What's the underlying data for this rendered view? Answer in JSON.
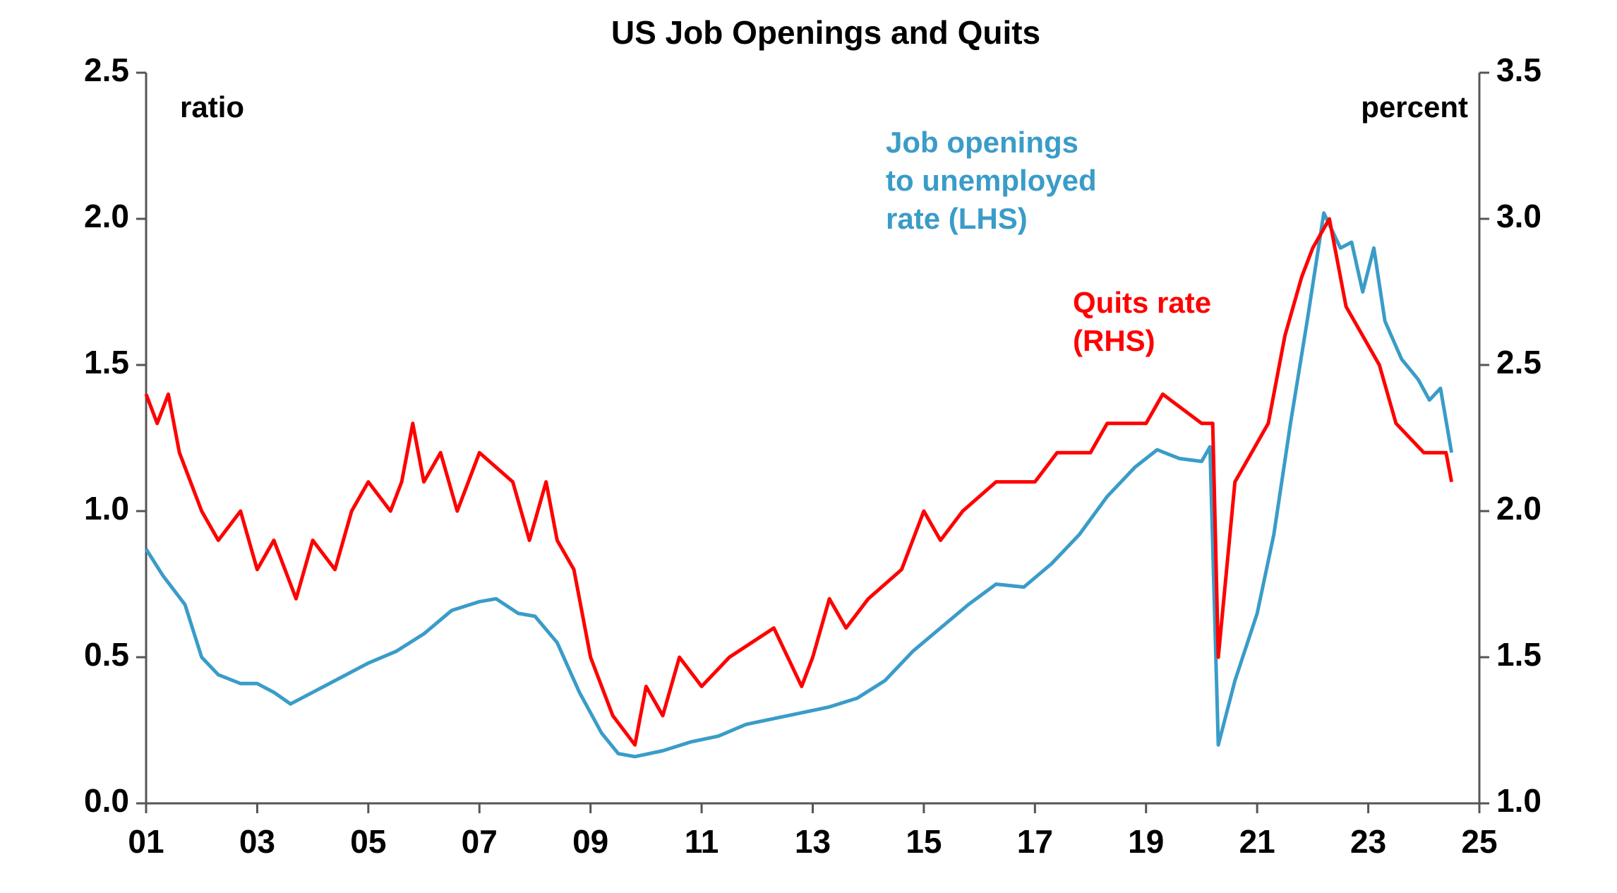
{
  "chart_data": {
    "type": "line",
    "title": "US Job Openings and Quits",
    "y_unit_label": "ratio",
    "y2_unit_label": "percent",
    "xlim": [
      2001,
      2025
    ],
    "xticks": [
      {
        "value": 2001,
        "label": "01"
      },
      {
        "value": 2003,
        "label": "03"
      },
      {
        "value": 2005,
        "label": "05"
      },
      {
        "value": 2007,
        "label": "07"
      },
      {
        "value": 2009,
        "label": "09"
      },
      {
        "value": 2011,
        "label": "11"
      },
      {
        "value": 2013,
        "label": "13"
      },
      {
        "value": 2015,
        "label": "15"
      },
      {
        "value": 2017,
        "label": "17"
      },
      {
        "value": 2019,
        "label": "19"
      },
      {
        "value": 2021,
        "label": "21"
      },
      {
        "value": 2023,
        "label": "23"
      },
      {
        "value": 2025,
        "label": "25"
      }
    ],
    "ylim": [
      0,
      2.5
    ],
    "yticks": [
      {
        "value": 0,
        "label": "0.0"
      },
      0.5,
      {
        "value": 1,
        "label": "1.0"
      },
      1.5,
      {
        "value": 2,
        "label": "2.0"
      },
      2.5
    ],
    "y2lim": [
      1,
      3.5
    ],
    "y2ticks": [
      {
        "value": 1,
        "label": "1.0"
      },
      1.5,
      {
        "value": 2,
        "label": "2.0"
      },
      2.5,
      {
        "value": 3,
        "label": "3.0"
      },
      3.5
    ],
    "series": [
      {
        "label_lines": [
          "Job openings",
          "to unemployed",
          "rate (LHS)"
        ],
        "color": "#3a9cc8",
        "axis": "y",
        "x": [
          2001.0,
          2001.3,
          2001.7,
          2002.0,
          2002.3,
          2002.7,
          2003.0,
          2003.3,
          2003.6,
          2004.0,
          2004.5,
          2005.0,
          2005.5,
          2006.0,
          2006.5,
          2007.0,
          2007.3,
          2007.7,
          2008.0,
          2008.4,
          2008.8,
          2009.2,
          2009.5,
          2009.8,
          2010.3,
          2010.8,
          2011.3,
          2011.8,
          2012.3,
          2012.8,
          2013.3,
          2013.8,
          2014.3,
          2014.8,
          2015.3,
          2015.8,
          2016.3,
          2016.8,
          2017.3,
          2017.8,
          2018.3,
          2018.8,
          2019.2,
          2019.6,
          2020.0,
          2020.15,
          2020.3,
          2020.6,
          2021.0,
          2021.3,
          2021.6,
          2021.9,
          2022.2,
          2022.5,
          2022.7,
          2022.9,
          2023.1,
          2023.3,
          2023.6,
          2023.9,
          2024.1,
          2024.3,
          2024.5
        ],
        "values": [
          0.87,
          0.78,
          0.68,
          0.5,
          0.44,
          0.41,
          0.41,
          0.38,
          0.34,
          0.38,
          0.43,
          0.48,
          0.52,
          0.58,
          0.66,
          0.69,
          0.7,
          0.65,
          0.64,
          0.55,
          0.38,
          0.24,
          0.17,
          0.16,
          0.18,
          0.21,
          0.23,
          0.27,
          0.29,
          0.31,
          0.33,
          0.36,
          0.42,
          0.52,
          0.6,
          0.68,
          0.75,
          0.74,
          0.82,
          0.92,
          1.05,
          1.15,
          1.21,
          1.18,
          1.17,
          1.22,
          0.2,
          0.42,
          0.65,
          0.92,
          1.3,
          1.65,
          2.02,
          1.9,
          1.92,
          1.75,
          1.9,
          1.65,
          1.52,
          1.45,
          1.38,
          1.42,
          1.2
        ]
      },
      {
        "label_lines": [
          "Quits rate",
          "(RHS)"
        ],
        "color": "#ff0000",
        "axis": "y2",
        "x": [
          2001.0,
          2001.2,
          2001.4,
          2001.6,
          2002.0,
          2002.3,
          2002.7,
          2003.0,
          2003.3,
          2003.5,
          2003.7,
          2004.0,
          2004.4,
          2004.7,
          2005.0,
          2005.4,
          2005.6,
          2005.8,
          2006.0,
          2006.3,
          2006.6,
          2007.0,
          2007.6,
          2007.9,
          2008.2,
          2008.4,
          2008.7,
          2009.0,
          2009.4,
          2009.8,
          2010.0,
          2010.3,
          2010.6,
          2011.0,
          2011.5,
          2012.3,
          2012.8,
          2013.0,
          2013.3,
          2013.6,
          2014.0,
          2014.6,
          2015.0,
          2015.3,
          2015.7,
          2016.3,
          2017.0,
          2017.4,
          2018.0,
          2018.3,
          2019.0,
          2019.3,
          2020.0,
          2020.2,
          2020.3,
          2020.6,
          2020.9,
          2021.2,
          2021.5,
          2021.8,
          2022.0,
          2022.3,
          2022.6,
          2022.9,
          2023.2,
          2023.5,
          2024.0,
          2024.4,
          2024.5
        ],
        "values": [
          2.4,
          2.3,
          2.4,
          2.2,
          2.0,
          1.9,
          2.0,
          1.8,
          1.9,
          1.8,
          1.7,
          1.9,
          1.8,
          2.0,
          2.1,
          2.0,
          2.1,
          2.3,
          2.1,
          2.2,
          2.0,
          2.2,
          2.1,
          1.9,
          2.1,
          1.9,
          1.8,
          1.5,
          1.3,
          1.2,
          1.4,
          1.3,
          1.5,
          1.4,
          1.5,
          1.6,
          1.4,
          1.5,
          1.7,
          1.6,
          1.7,
          1.8,
          2.0,
          1.9,
          2.0,
          2.1,
          2.1,
          2.2,
          2.2,
          2.3,
          2.3,
          2.4,
          2.3,
          2.3,
          1.5,
          2.1,
          2.2,
          2.3,
          2.6,
          2.8,
          2.9,
          3.0,
          2.7,
          2.6,
          2.5,
          2.3,
          2.2,
          2.2,
          2.1
        ]
      }
    ]
  }
}
